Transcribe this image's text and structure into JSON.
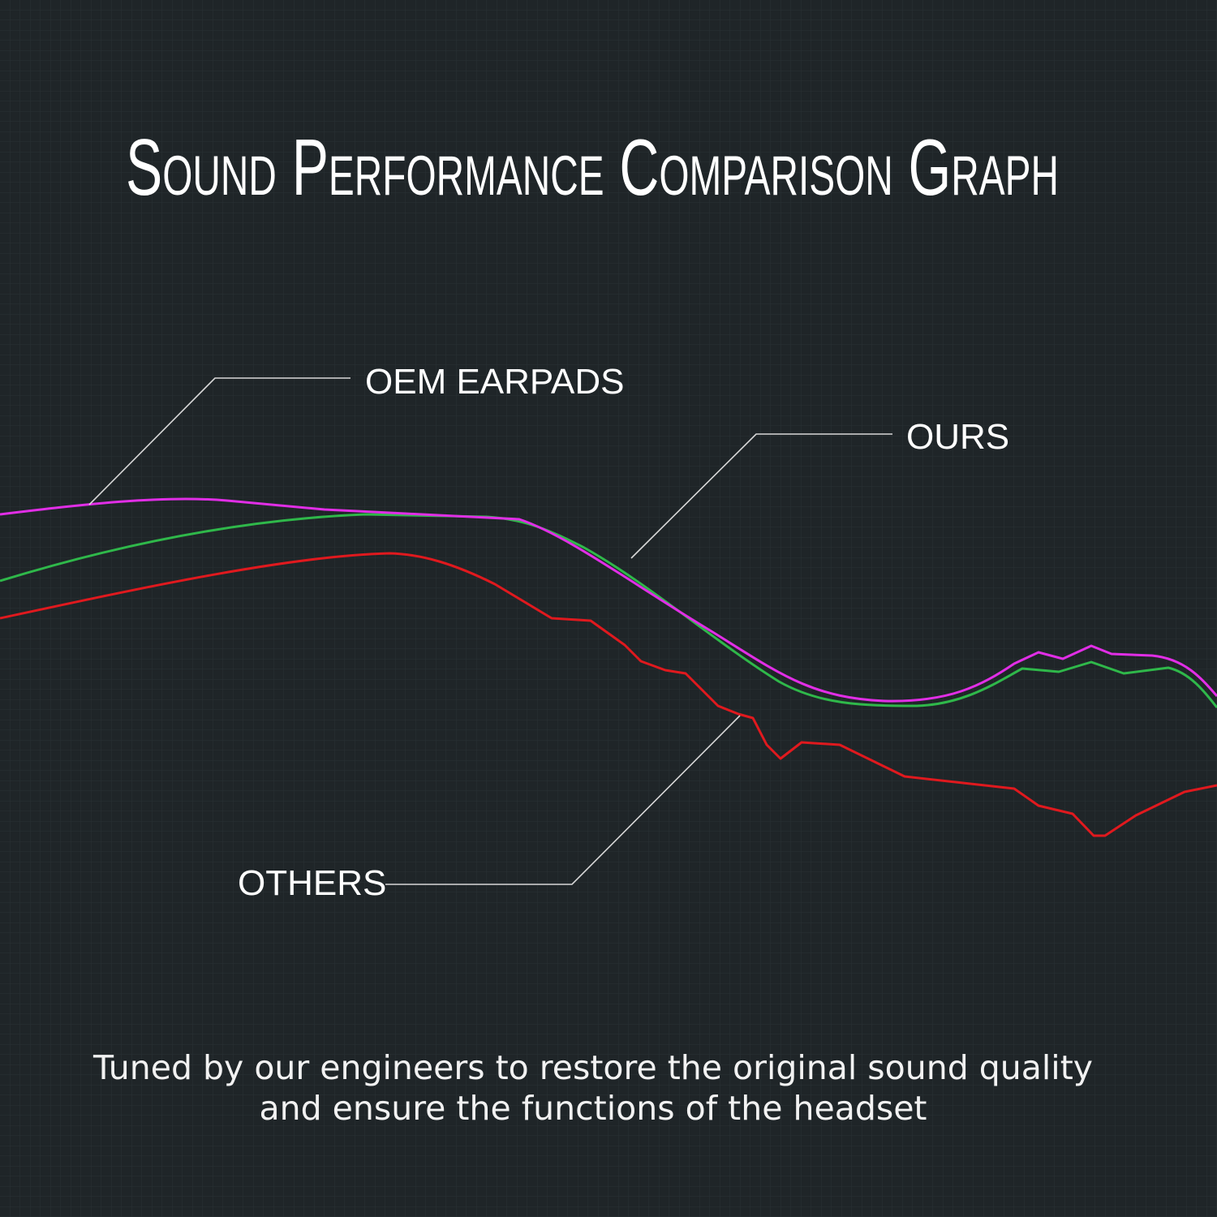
{
  "title": "Sound Performance Comparison Graph",
  "labels": {
    "oem": "OEM EARPADS",
    "ours": "OURS",
    "others": "OTHERS"
  },
  "caption": [
    "Tuned by our engineers to restore the original sound quality",
    "and ensure the functions of the headset"
  ]
}
